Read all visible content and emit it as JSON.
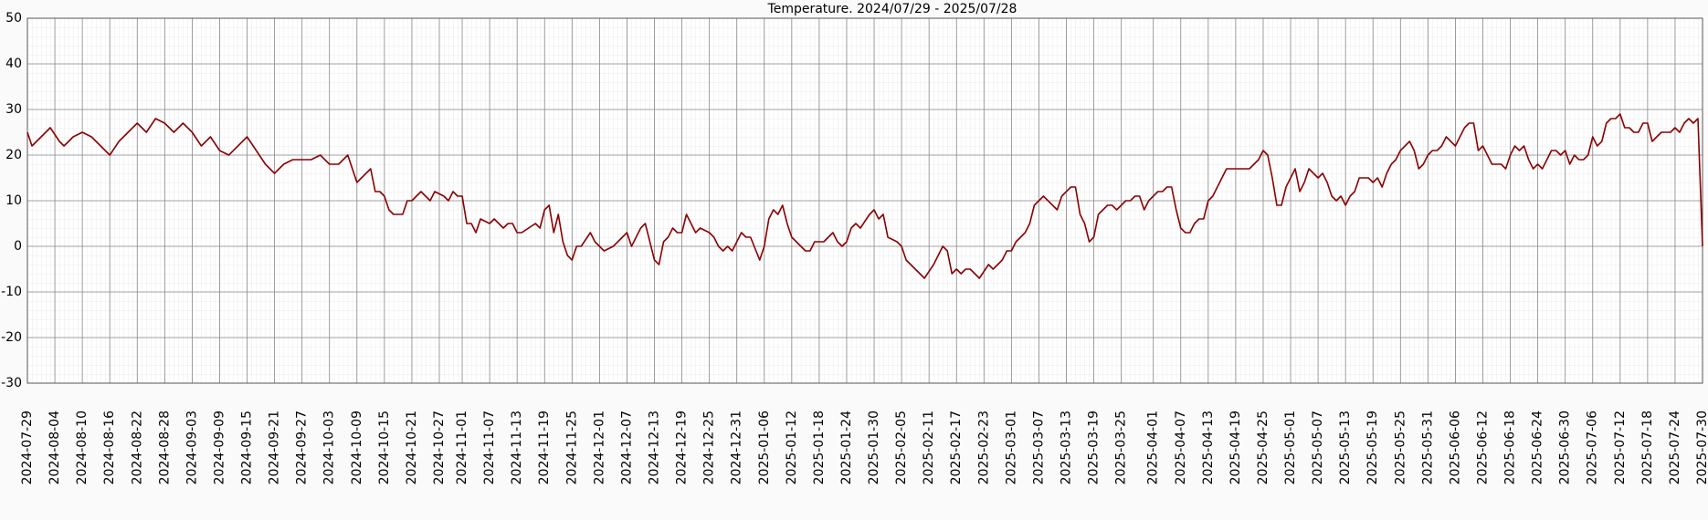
{
  "chart_data": {
    "type": "line",
    "title": "Temperature. 2024/07/29 - 2025/07/28",
    "color": "#8b0000",
    "grid": true,
    "xlim": [
      "2024-07-29",
      "2025-07-30"
    ],
    "xticks": [
      "2024-07-29",
      "2024-08-04",
      "2024-08-10",
      "2024-08-16",
      "2024-08-22",
      "2024-08-28",
      "2024-09-03",
      "2024-09-09",
      "2024-09-15",
      "2024-09-21",
      "2024-09-27",
      "2024-10-03",
      "2024-10-09",
      "2024-10-15",
      "2024-10-21",
      "2024-10-27",
      "2024-11-01",
      "2024-11-07",
      "2024-11-13",
      "2024-11-19",
      "2024-11-25",
      "2024-12-01",
      "2024-12-07",
      "2024-12-13",
      "2024-12-19",
      "2024-12-25",
      "2024-12-31",
      "2025-01-06",
      "2025-01-12",
      "2025-01-18",
      "2025-01-24",
      "2025-01-30",
      "2025-02-05",
      "2025-02-11",
      "2025-02-17",
      "2025-02-23",
      "2025-03-01",
      "2025-03-07",
      "2025-03-13",
      "2025-03-19",
      "2025-03-25",
      "2025-04-01",
      "2025-04-07",
      "2025-04-13",
      "2025-04-19",
      "2025-04-25",
      "2025-05-01",
      "2025-05-07",
      "2025-05-13",
      "2025-05-19",
      "2025-05-25",
      "2025-05-31",
      "2025-06-06",
      "2025-06-12",
      "2025-06-18",
      "2025-06-24",
      "2025-06-30",
      "2025-07-06",
      "2025-07-12",
      "2025-07-18",
      "2025-07-24",
      "2025-07-30"
    ],
    "ylim": [
      -30,
      50
    ],
    "yticks": [
      -30,
      -20,
      -10,
      0,
      10,
      20,
      30,
      40,
      50
    ],
    "x": [
      "2024-07-29",
      "2024-07-30",
      "2024-08-01",
      "2024-08-03",
      "2024-08-05",
      "2024-08-06",
      "2024-08-08",
      "2024-08-10",
      "2024-08-12",
      "2024-08-14",
      "2024-08-16",
      "2024-08-18",
      "2024-08-20",
      "2024-08-22",
      "2024-08-24",
      "2024-08-26",
      "2024-08-28",
      "2024-08-30",
      "2024-09-01",
      "2024-09-03",
      "2024-09-05",
      "2024-09-07",
      "2024-09-09",
      "2024-09-11",
      "2024-09-13",
      "2024-09-15",
      "2024-09-17",
      "2024-09-19",
      "2024-09-21",
      "2024-09-23",
      "2024-09-25",
      "2024-09-27",
      "2024-09-29",
      "2024-10-01",
      "2024-10-03",
      "2024-10-05",
      "2024-10-07",
      "2024-10-09",
      "2024-10-10",
      "2024-10-11",
      "2024-10-12",
      "2024-10-13",
      "2024-10-14",
      "2024-10-15",
      "2024-10-16",
      "2024-10-17",
      "2024-10-19",
      "2024-10-20",
      "2024-10-21",
      "2024-10-23",
      "2024-10-25",
      "2024-10-26",
      "2024-10-28",
      "2024-10-29",
      "2024-10-30",
      "2024-10-31",
      "2024-11-01",
      "2024-11-02",
      "2024-11-03",
      "2024-11-04",
      "2024-11-05",
      "2024-11-07",
      "2024-11-08",
      "2024-11-10",
      "2024-11-11",
      "2024-11-12",
      "2024-11-13",
      "2024-11-14",
      "2024-11-17",
      "2024-11-18",
      "2024-11-19",
      "2024-11-20",
      "2024-11-21",
      "2024-11-22",
      "2024-11-23",
      "2024-11-24",
      "2024-11-25",
      "2024-11-26",
      "2024-11-27",
      "2024-11-29",
      "2024-11-30",
      "2024-12-02",
      "2024-12-04",
      "2024-12-05",
      "2024-12-07",
      "2024-12-08",
      "2024-12-10",
      "2024-12-11",
      "2024-12-13",
      "2024-12-14",
      "2024-12-15",
      "2024-12-16",
      "2024-12-17",
      "2024-12-18",
      "2024-12-19",
      "2024-12-20",
      "2024-12-21",
      "2024-12-22",
      "2024-12-23",
      "2024-12-25",
      "2024-12-26",
      "2024-12-27",
      "2024-12-28",
      "2024-12-29",
      "2024-12-30",
      "2024-12-31",
      "2025-01-01",
      "2025-01-02",
      "2025-01-03",
      "2025-01-05",
      "2025-01-06",
      "2025-01-07",
      "2025-01-08",
      "2025-01-09",
      "2025-01-10",
      "2025-01-11",
      "2025-01-12",
      "2025-01-13",
      "2025-01-15",
      "2025-01-16",
      "2025-01-17",
      "2025-01-19",
      "2025-01-21",
      "2025-01-22",
      "2025-01-23",
      "2025-01-24",
      "2025-01-25",
      "2025-01-26",
      "2025-01-27",
      "2025-01-29",
      "2025-01-30",
      "2025-01-31",
      "2025-02-01",
      "2025-02-02",
      "2025-02-04",
      "2025-02-05",
      "2025-02-06",
      "2025-02-08",
      "2025-02-10",
      "2025-02-12",
      "2025-02-13",
      "2025-02-14",
      "2025-02-15",
      "2025-02-16",
      "2025-02-17",
      "2025-02-18",
      "2025-02-19",
      "2025-02-20",
      "2025-02-22",
      "2025-02-24",
      "2025-02-25",
      "2025-02-27",
      "2025-02-28",
      "2025-03-01",
      "2025-03-02",
      "2025-03-04",
      "2025-03-05",
      "2025-03-06",
      "2025-03-08",
      "2025-03-10",
      "2025-03-11",
      "2025-03-12",
      "2025-03-14",
      "2025-03-15",
      "2025-03-16",
      "2025-03-17",
      "2025-03-18",
      "2025-03-19",
      "2025-03-20",
      "2025-03-22",
      "2025-03-23",
      "2025-03-24",
      "2025-03-26",
      "2025-03-27",
      "2025-03-28",
      "2025-03-29",
      "2025-03-30",
      "2025-03-31",
      "2025-04-02",
      "2025-04-03",
      "2025-04-04",
      "2025-04-05",
      "2025-04-06",
      "2025-04-07",
      "2025-04-08",
      "2025-04-09",
      "2025-04-10",
      "2025-04-11",
      "2025-04-12",
      "2025-04-13",
      "2025-04-14",
      "2025-04-16",
      "2025-04-17",
      "2025-04-19",
      "2025-04-21",
      "2025-04-22",
      "2025-04-23",
      "2025-04-24",
      "2025-04-25",
      "2025-04-26",
      "2025-04-27",
      "2025-04-28",
      "2025-04-29",
      "2025-04-30",
      "2025-05-02",
      "2025-05-03",
      "2025-05-04",
      "2025-05-05",
      "2025-05-06",
      "2025-05-07",
      "2025-05-08",
      "2025-05-09",
      "2025-05-10",
      "2025-05-11",
      "2025-05-12",
      "2025-05-13",
      "2025-05-14",
      "2025-05-15",
      "2025-05-16",
      "2025-05-18",
      "2025-05-19",
      "2025-05-20",
      "2025-05-21",
      "2025-05-22",
      "2025-05-23",
      "2025-05-24",
      "2025-05-25",
      "2025-05-26",
      "2025-05-27",
      "2025-05-28",
      "2025-05-29",
      "2025-05-30",
      "2025-05-31",
      "2025-06-01",
      "2025-06-02",
      "2025-06-03",
      "2025-06-04",
      "2025-06-06",
      "2025-06-08",
      "2025-06-09",
      "2025-06-10",
      "2025-06-11",
      "2025-06-12",
      "2025-06-13",
      "2025-06-14",
      "2025-06-16",
      "2025-06-17",
      "2025-06-18",
      "2025-06-19",
      "2025-06-20",
      "2025-06-21",
      "2025-06-22",
      "2025-06-23",
      "2025-06-24",
      "2025-06-25",
      "2025-06-26",
      "2025-06-27",
      "2025-06-28",
      "2025-06-29",
      "2025-06-30",
      "2025-07-01",
      "2025-07-02",
      "2025-07-03",
      "2025-07-04",
      "2025-07-05",
      "2025-07-06",
      "2025-07-07",
      "2025-07-08",
      "2025-07-09",
      "2025-07-10",
      "2025-07-11",
      "2025-07-12",
      "2025-07-13",
      "2025-07-14",
      "2025-07-15",
      "2025-07-16",
      "2025-07-17",
      "2025-07-18",
      "2025-07-19",
      "2025-07-20",
      "2025-07-21",
      "2025-07-23",
      "2025-07-24",
      "2025-07-25",
      "2025-07-26",
      "2025-07-27",
      "2025-07-28",
      "2025-07-29",
      "2025-07-30"
    ],
    "values": [
      25,
      22,
      24,
      26,
      23,
      22,
      24,
      25,
      24,
      22,
      20,
      23,
      25,
      27,
      25,
      28,
      27,
      25,
      27,
      25,
      22,
      24,
      21,
      20,
      22,
      24,
      21,
      18,
      16,
      18,
      19,
      19,
      19,
      20,
      18,
      18,
      20,
      14,
      15,
      16,
      17,
      12,
      12,
      11,
      8,
      7,
      7,
      10,
      10,
      12,
      10,
      12,
      11,
      10,
      12,
      11,
      11,
      5,
      5,
      3,
      6,
      5,
      6,
      4,
      5,
      5,
      3,
      3,
      5,
      4,
      8,
      9,
      3,
      7,
      1,
      -2,
      -3,
      0,
      0,
      3,
      1,
      -1,
      0,
      1,
      3,
      0,
      4,
      5,
      -3,
      -4,
      1,
      2,
      4,
      3,
      3,
      7,
      5,
      3,
      4,
      3,
      2,
      0,
      -1,
      0,
      -1,
      1,
      3,
      2,
      2,
      -3,
      0,
      6,
      8,
      7,
      9,
      5,
      2,
      1,
      -1,
      -1,
      1,
      1,
      3,
      1,
      0,
      1,
      4,
      5,
      4,
      7,
      8,
      6,
      7,
      2,
      1,
      0,
      -3,
      -5,
      -7,
      -4,
      -2,
      0,
      -1,
      -6,
      -5,
      -6,
      -5,
      -5,
      -7,
      -4,
      -5,
      -3,
      -1,
      -1,
      1,
      3,
      5,
      9,
      11,
      9,
      8,
      11,
      13,
      13,
      7,
      5,
      1,
      2,
      7,
      9,
      9,
      8,
      10,
      10,
      11,
      11,
      8,
      10,
      12,
      12,
      13,
      13,
      8,
      4,
      3,
      3,
      5,
      6,
      6,
      10,
      11,
      15,
      17,
      17,
      17,
      17,
      18,
      19,
      21,
      20,
      15,
      9,
      9,
      13,
      17,
      12,
      14,
      17,
      16,
      15,
      16,
      14,
      11,
      10,
      11,
      9,
      11,
      12,
      15,
      15,
      14,
      15,
      13,
      16,
      18,
      19,
      21,
      22,
      23,
      21,
      17,
      18,
      20,
      21,
      21,
      22,
      24,
      22,
      26,
      27,
      27,
      21,
      22,
      20,
      18,
      18,
      17,
      20,
      22,
      21,
      22,
      19,
      17,
      18,
      17,
      19,
      21,
      21,
      20,
      21,
      18,
      20,
      19,
      19,
      20,
      24,
      22,
      23,
      27,
      28,
      28,
      29,
      26,
      26,
      25,
      25,
      27,
      27,
      23,
      24,
      25,
      25,
      26,
      25,
      27,
      28,
      27,
      28,
      0
    ]
  }
}
